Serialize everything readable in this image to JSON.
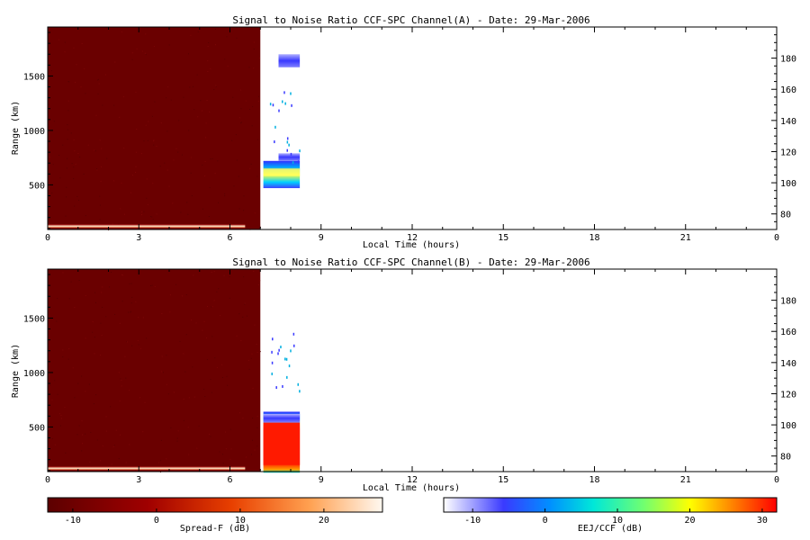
{
  "chart_data": [
    {
      "type": "heatmap",
      "title": "Signal to Noise Ratio CCF-SPC Channel(A) - Date: 29-Mar-2006",
      "xlabel": "Local Time (hours)",
      "ylabel": "Range (km)",
      "x_ticks": [
        "0",
        "3",
        "6",
        "9",
        "12",
        "15",
        "18",
        "21",
        "0"
      ],
      "y_ticks": [
        "500",
        "1000",
        "1500"
      ],
      "y2_ticks": [
        "80",
        "100",
        "120",
        "140",
        "160",
        "180"
      ],
      "xlim": [
        0,
        24
      ],
      "ylim_km": [
        90,
        1950
      ],
      "y2lim": [
        70,
        200
      ],
      "spreadf_block": {
        "t_start": 0,
        "t_end": 7.0,
        "snr_db": -12
      },
      "lower_trace": {
        "t_start": 0,
        "t_end": 6.5,
        "range_km": 120,
        "snr_db": 22
      },
      "eej_patches": [
        {
          "t_start": 7.1,
          "t_end": 8.3,
          "r_min": 470,
          "r_max": 720,
          "snr_db": 12
        },
        {
          "t_start": 7.1,
          "t_end": 8.3,
          "r_min": 580,
          "r_max": 650,
          "snr_db": 20
        },
        {
          "t_start": 7.6,
          "t_end": 8.3,
          "r_min": 1580,
          "r_max": 1700,
          "snr_db": -6
        },
        {
          "t_start": 7.6,
          "t_end": 8.3,
          "r_min": 720,
          "r_max": 790,
          "snr_db": -6
        }
      ]
    },
    {
      "type": "heatmap",
      "title": "Signal to Noise Ratio CCF-SPC Channel(B) - Date: 29-Mar-2006",
      "xlabel": "Local Time (hours)",
      "ylabel": "Range (km)",
      "x_ticks": [
        "0",
        "3",
        "6",
        "9",
        "12",
        "15",
        "18",
        "21",
        "0"
      ],
      "y_ticks": [
        "500",
        "1000",
        "1500"
      ],
      "y2_ticks": [
        "80",
        "100",
        "120",
        "140",
        "160",
        "180"
      ],
      "xlim": [
        0,
        24
      ],
      "ylim_km": [
        90,
        1950
      ],
      "y2lim": [
        70,
        200
      ],
      "spreadf_block": {
        "t_start": 0,
        "t_end": 7.0,
        "snr_db": -12
      },
      "lower_trace": {
        "t_start": 0,
        "t_end": 6.5,
        "range_km": 120,
        "snr_db": 22
      },
      "eej_patches": [
        {
          "t_start": 7.1,
          "t_end": 8.3,
          "r_min": 80,
          "r_max": 640,
          "snr_db": 8
        },
        {
          "t_start": 7.1,
          "t_end": 8.3,
          "r_min": 150,
          "r_max": 540,
          "snr_db": 28
        },
        {
          "t_start": 7.1,
          "t_end": 8.3,
          "r_min": 540,
          "r_max": 620,
          "snr_db": -5
        }
      ]
    }
  ],
  "colorbars": [
    {
      "label": "Spread-F (dB)",
      "ticks": [
        "-10",
        "0",
        "10",
        "20"
      ],
      "range": [
        -13,
        27
      ],
      "palette": "red-temperature"
    },
    {
      "label": "EEJ/CCF (dB)",
      "ticks": [
        "-10",
        "0",
        "10",
        "20",
        "30"
      ],
      "range": [
        -14,
        32
      ],
      "palette": "white-blue-cyan-yellow-red"
    }
  ]
}
